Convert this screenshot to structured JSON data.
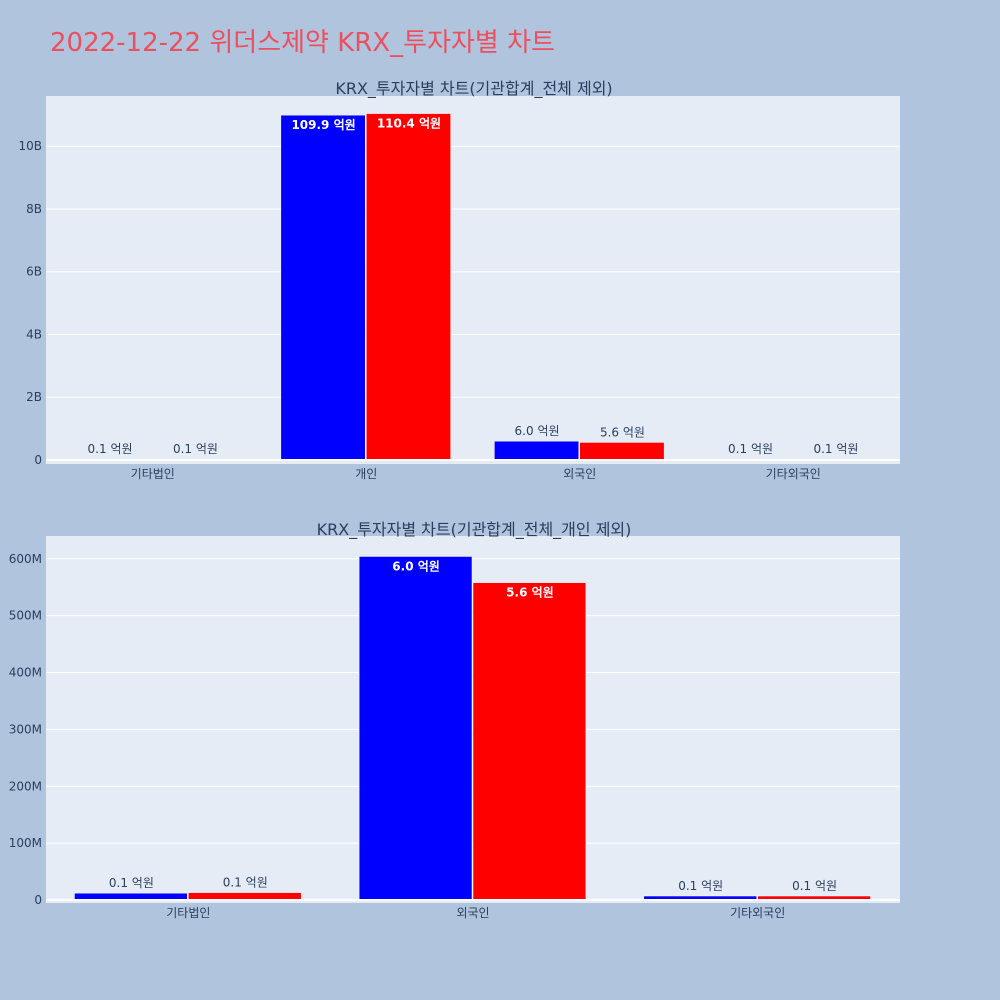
{
  "page": {
    "title": "2022-12-22 위더스제약 KRX_투자자별 차트"
  },
  "colors": {
    "background": "#b0c4de",
    "plot_bg": "#e5ecf6",
    "title": "#ec4f5e",
    "series_blue": "#0000ff",
    "series_red": "#ff0000"
  },
  "chart_data": [
    {
      "type": "bar",
      "title": "KRX_투자자별 차트(기관합계_전체 제외)",
      "categories": [
        "기타법인",
        "개인",
        "외국인",
        "기타외국인"
      ],
      "series": [
        {
          "color": "#0000ff",
          "values": [
            10000000,
            10990000000,
            600000000,
            10000000
          ],
          "labels": [
            "0.1 억원",
            "109.9 억원",
            "6.0 억원",
            "0.1 억원"
          ]
        },
        {
          "color": "#ff0000",
          "values": [
            10000000,
            11040000000,
            560000000,
            10000000
          ],
          "labels": [
            "0.1 억원",
            "110.4 억원",
            "5.6 억원",
            "0.1 억원"
          ]
        }
      ],
      "ylim": [
        0,
        11600000000
      ],
      "yticks": [
        0,
        2000000000,
        4000000000,
        6000000000,
        8000000000,
        10000000000
      ],
      "ytick_labels": [
        "0",
        "2B",
        "4B",
        "6B",
        "8B",
        "10B"
      ],
      "grid": true
    },
    {
      "type": "bar",
      "title": "KRX_투자자별 차트(기관합계_전체_개인 제외)",
      "categories": [
        "기타법인",
        "외국인",
        "기타외국인"
      ],
      "series": [
        {
          "color": "#0000ff",
          "values": [
            12000000,
            604000000,
            7000000
          ],
          "labels": [
            "0.1 억원",
            "6.0 억원",
            "0.1 억원"
          ]
        },
        {
          "color": "#ff0000",
          "values": [
            13000000,
            558000000,
            7000000
          ],
          "labels": [
            "0.1 억원",
            "5.6 억원",
            "0.1 억원"
          ]
        }
      ],
      "ylim": [
        0,
        640000000
      ],
      "yticks": [
        0,
        100000000,
        200000000,
        300000000,
        400000000,
        500000000,
        600000000
      ],
      "ytick_labels": [
        "0",
        "100M",
        "200M",
        "300M",
        "400M",
        "500M",
        "600M"
      ],
      "grid": true
    }
  ]
}
